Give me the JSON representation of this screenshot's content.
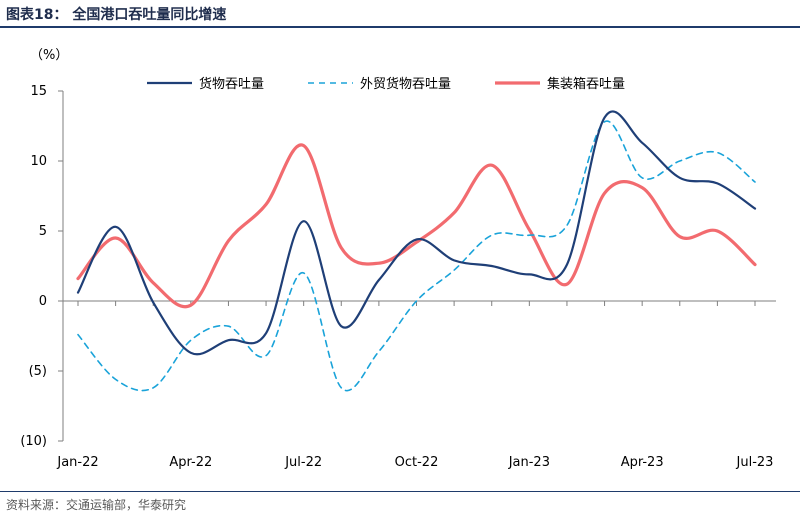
{
  "figure": {
    "title": "图表18：  全国港口吞吐量同比增速",
    "source": "资料来源：交通运输部，华泰研究"
  },
  "chart_data": {
    "type": "line",
    "unit_label": "（%）",
    "ylim": [
      -10,
      15
    ],
    "y_ticks": [
      15,
      10,
      5,
      0,
      -5,
      -10
    ],
    "y_tick_labels": [
      "15",
      "10",
      "5",
      "0",
      "(5)",
      "(10)"
    ],
    "x_tick_labels": [
      "Jan-22",
      "Apr-22",
      "Jul-22",
      "Oct-22",
      "Jan-23",
      "Apr-23",
      "Jul-23"
    ],
    "x": [
      "Jan-22",
      "Feb-22",
      "Mar-22",
      "Apr-22",
      "May-22",
      "Jun-22",
      "Jul-22",
      "Aug-22",
      "Sep-22",
      "Oct-22",
      "Nov-22",
      "Dec-22",
      "Jan-23",
      "Feb-23",
      "Mar-23",
      "Apr-23",
      "May-23",
      "Jun-23",
      "Jul-23"
    ],
    "grid": false,
    "legend_position": "top",
    "series": [
      {
        "name": "货物吞吐量",
        "style": "solid",
        "color": "#1f3f77",
        "values": [
          0.6,
          5.3,
          -0.1,
          -3.7,
          -2.8,
          -2.3,
          5.7,
          -1.8,
          1.5,
          4.4,
          2.9,
          2.5,
          1.9,
          2.6,
          13.1,
          11.3,
          8.8,
          8.4,
          6.6
        ]
      },
      {
        "name": "外贸货物吞吐量",
        "style": "dashed",
        "color": "#1aa3d9",
        "values": [
          -2.4,
          -5.6,
          -6.2,
          -2.8,
          -1.8,
          -3.9,
          2.0,
          -6.2,
          -3.6,
          0.0,
          2.2,
          4.7,
          4.7,
          5.4,
          12.8,
          8.8,
          10.0,
          10.6,
          8.5
        ]
      },
      {
        "name": "集装箱吞吐量",
        "style": "solid",
        "color": "#f26b6f",
        "values": [
          1.6,
          4.5,
          1.3,
          -0.3,
          4.3,
          6.9,
          11.1,
          3.8,
          2.7,
          4.2,
          6.3,
          9.7,
          5.1,
          1.2,
          7.7,
          8.1,
          4.6,
          5.0,
          2.6
        ]
      }
    ]
  }
}
